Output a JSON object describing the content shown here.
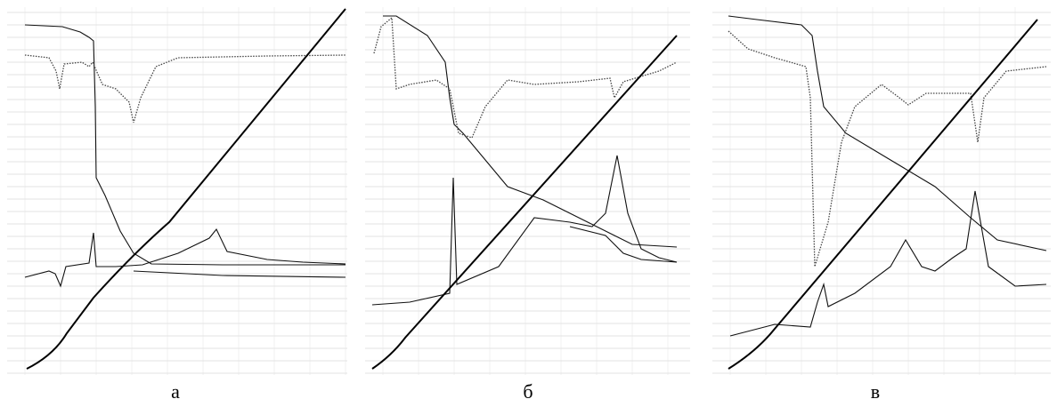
{
  "panels": [
    {
      "label": "а"
    },
    {
      "label": "б"
    },
    {
      "label": "в"
    }
  ]
}
